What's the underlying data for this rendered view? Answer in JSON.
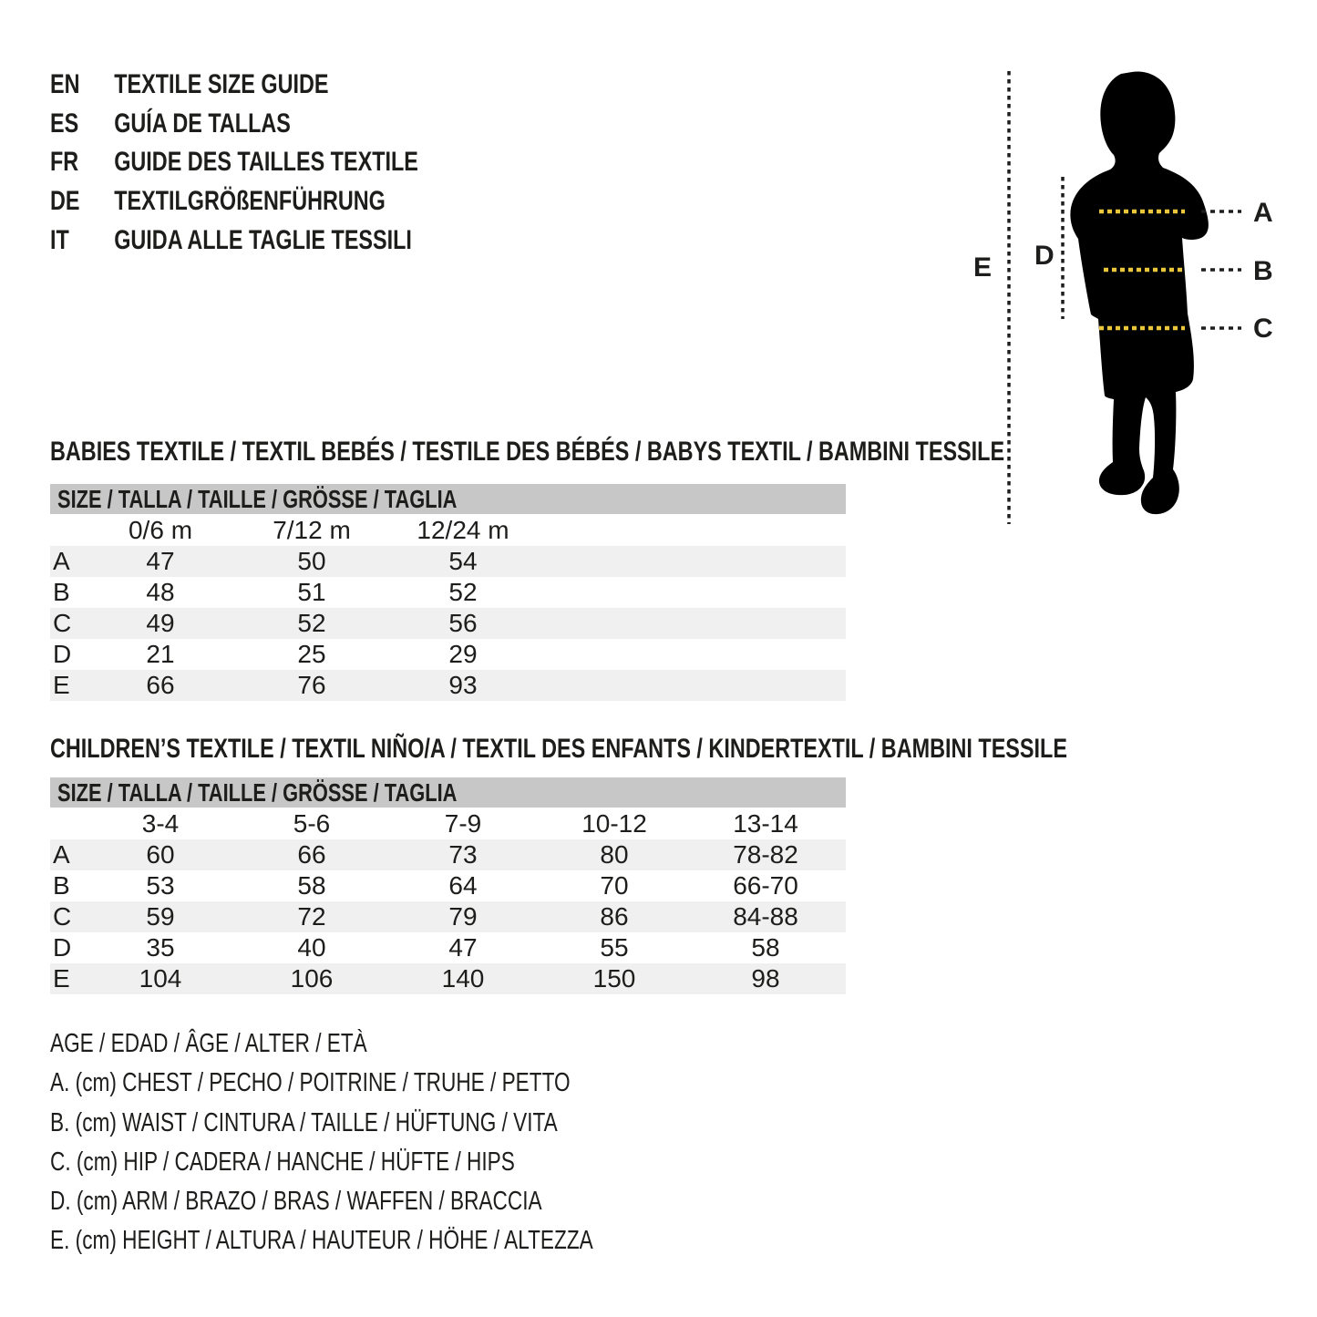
{
  "languages": [
    {
      "code": "EN",
      "title": "TEXTILE SIZE GUIDE"
    },
    {
      "code": "ES",
      "title": "GUÍA DE TALLAS"
    },
    {
      "code": "FR",
      "title": "GUIDE DES TAILLES TEXTILE"
    },
    {
      "code": "DE",
      "title": "TEXTILGRÖßENFÜHRUNG"
    },
    {
      "code": "IT",
      "title": "GUIDA ALLE TAGLIE TESSILI"
    }
  ],
  "figure": {
    "labels": {
      "a": "A",
      "b": "B",
      "c": "C",
      "d": "D",
      "e": "E"
    }
  },
  "babies": {
    "section_title": "BABIES TEXTILE / TEXTIL BEBÉS / TESTILE DES BÉBÉS / BABYS TEXTIL / BAMBINI TESSILE",
    "size_header": "SIZE / TALLA / TAILLE / GRÖSSE / TAGLIA",
    "columns": [
      "0/6 m",
      "7/12 m",
      "12/24 m"
    ],
    "rows": [
      {
        "label": "A",
        "values": [
          "47",
          "50",
          "54"
        ]
      },
      {
        "label": "B",
        "values": [
          "48",
          "51",
          "52"
        ]
      },
      {
        "label": "C",
        "values": [
          "49",
          "52",
          "56"
        ]
      },
      {
        "label": "D",
        "values": [
          "21",
          "25",
          "29"
        ]
      },
      {
        "label": "E",
        "values": [
          "66",
          "76",
          "93"
        ]
      }
    ]
  },
  "children": {
    "section_title": "CHILDREN’S TEXTILE / TEXTIL NIÑO/A / TEXTIL DES ENFANTS / KINDERTEXTIL / BAMBINI TESSILE",
    "size_header": "SIZE / TALLA / TAILLE / GRÖSSE / TAGLIA",
    "columns": [
      "3-4",
      "5-6",
      "7-9",
      "10-12",
      "13-14"
    ],
    "rows": [
      {
        "label": "A",
        "values": [
          "60",
          "66",
          "73",
          "80",
          "78-82"
        ]
      },
      {
        "label": "B",
        "values": [
          "53",
          "58",
          "64",
          "70",
          "66-70"
        ]
      },
      {
        "label": "C",
        "values": [
          "59",
          "72",
          "79",
          "86",
          "84-88"
        ]
      },
      {
        "label": "D",
        "values": [
          "35",
          "40",
          "47",
          "55",
          "58"
        ]
      },
      {
        "label": "E",
        "values": [
          "104",
          "106",
          "140",
          "150",
          "98"
        ]
      }
    ]
  },
  "legend": [
    "AGE / EDAD / ÂGE / ALTER / ETÀ",
    "A. (cm) CHEST / PECHO / POITRINE / TRUHE / PETTO",
    "B. (cm) WAIST / CINTURA / TAILLE / HÜFTUNG / VITA",
    "C. (cm) HIP / CADERA / HANCHE / HÜFTE / HIPS",
    "D. (cm) ARM / BRAZO / BRAS / WAFFEN / BRACCIA",
    "E. (cm) HEIGHT / ALTURA / HAUTEUR / HÖHE / ALTEZZA"
  ],
  "colors": {
    "text": "#1d1d1b",
    "header_bar": "#c7c7c7",
    "zebra_row": "#f0f0f0",
    "measure_line_yellow": "#e9c63b",
    "silhouette": "#000000"
  }
}
